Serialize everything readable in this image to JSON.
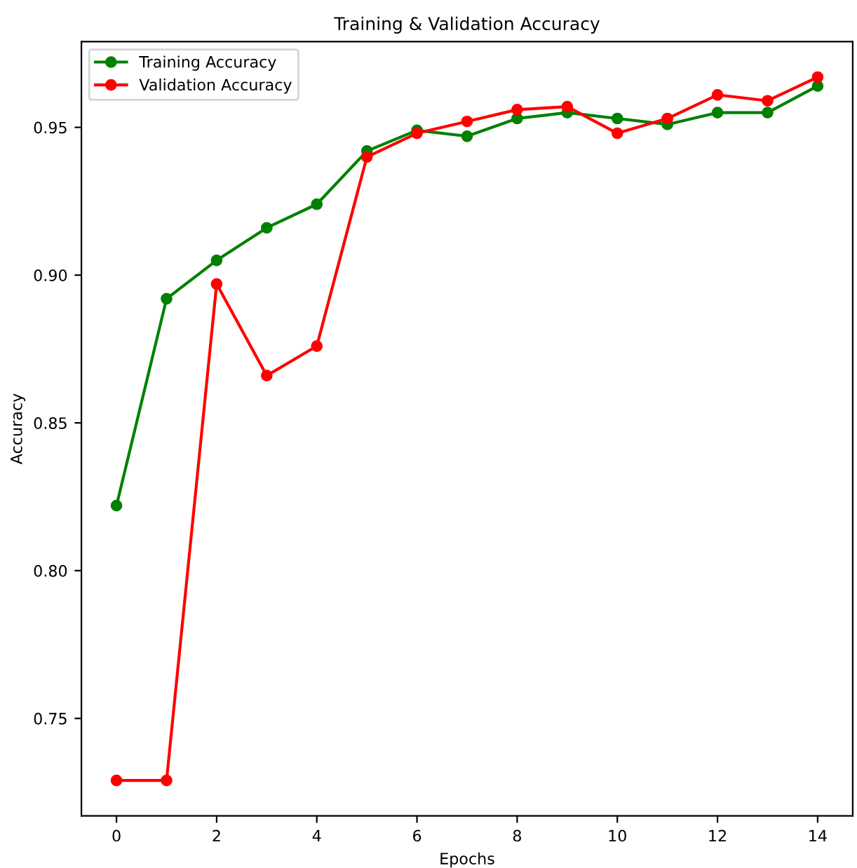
{
  "chart_data": {
    "type": "line",
    "title": "Training & Validation Accuracy",
    "xlabel": "Epochs",
    "ylabel": "Accuracy",
    "x": [
      0,
      1,
      2,
      3,
      4,
      5,
      6,
      7,
      8,
      9,
      10,
      11,
      12,
      13,
      14
    ],
    "series": [
      {
        "name": "Training Accuracy",
        "color": "#008000",
        "values": [
          0.822,
          0.892,
          0.905,
          0.916,
          0.924,
          0.942,
          0.949,
          0.947,
          0.953,
          0.955,
          0.953,
          0.951,
          0.955,
          0.955,
          0.964
        ]
      },
      {
        "name": "Validation Accuracy",
        "color": "#ff0000",
        "values": [
          0.729,
          0.729,
          0.897,
          0.866,
          0.876,
          0.94,
          0.948,
          0.952,
          0.956,
          0.957,
          0.948,
          0.953,
          0.961,
          0.959,
          0.967
        ]
      }
    ],
    "xlim": [
      -0.7,
      14.7
    ],
    "ylim": [
      0.717,
      0.979
    ],
    "xticks": [
      0,
      2,
      4,
      6,
      8,
      10,
      12,
      14
    ],
    "yticks": [
      0.75,
      {
        "value": 0.8,
        "label": "0.80"
      },
      0.85,
      {
        "value": 0.9,
        "label": "0.90"
      },
      0.95
    ],
    "marker": "circle",
    "line_style": "solid",
    "legend": "top left",
    "grid": false
  }
}
